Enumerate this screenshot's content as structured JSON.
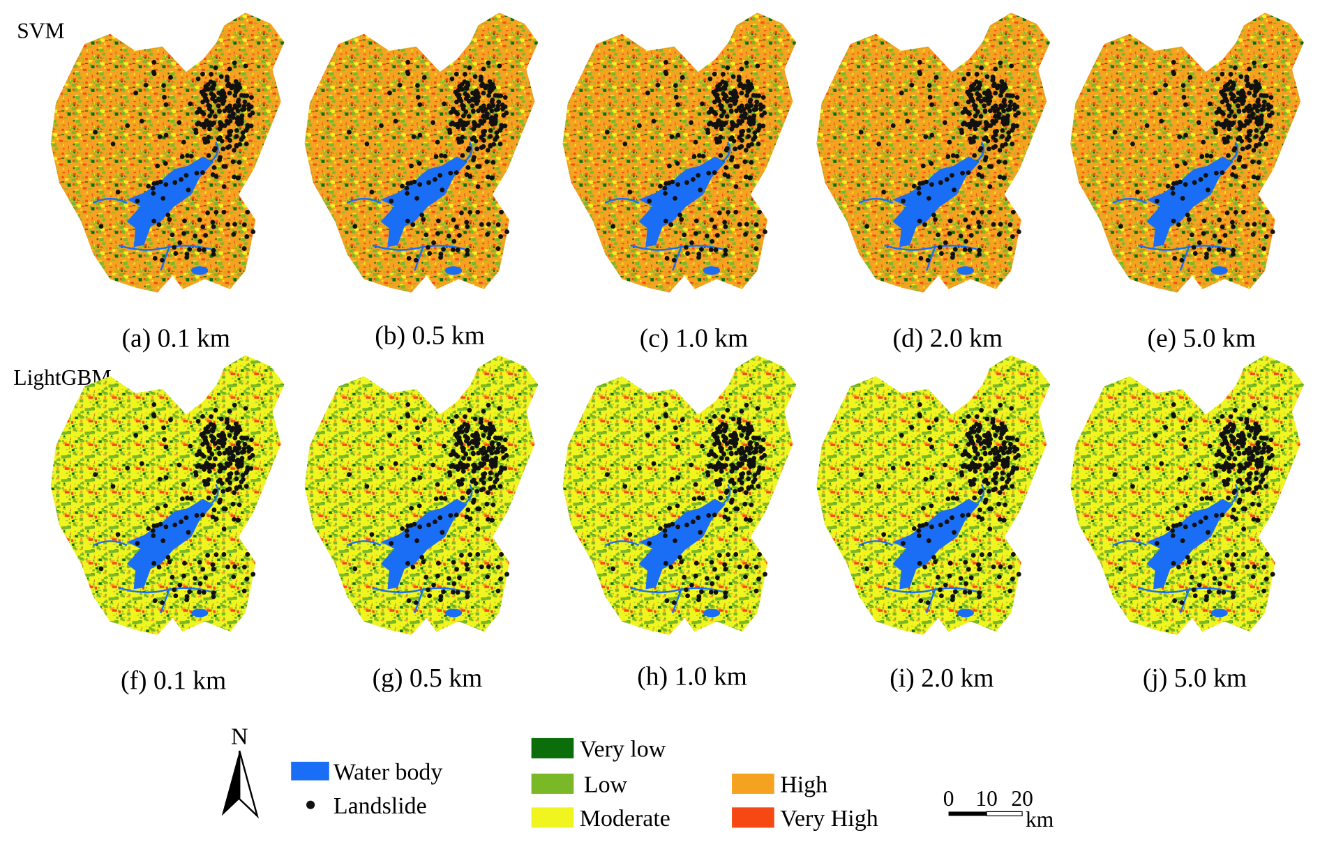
{
  "rows": [
    {
      "label": "SVM",
      "panels": [
        "(a) 0.1 km",
        "(b) 0.5 km",
        "(c) 1.0 km",
        "(d) 2.0 km",
        "(e) 5.0 km"
      ]
    },
    {
      "label": "LightGBM",
      "panels": [
        "(f) 0.1 km",
        "(g) 0.5 km",
        "(h) 1.0 km",
        "(i) 2.0 km",
        "(j) 5.0 km"
      ]
    }
  ],
  "legend": {
    "water": {
      "label": "Water body",
      "color": "#1a6ef5"
    },
    "landslide": {
      "label": "Landslide",
      "color": "#111111"
    },
    "classes": [
      {
        "label": "Very low",
        "color": "#0b6e0b"
      },
      {
        "label": "Low",
        "color": "#7ab828"
      },
      {
        "label": "Moderate",
        "color": "#f0f520"
      },
      {
        "label": "High",
        "color": "#f5a221"
      },
      {
        "label": "Very High",
        "color": "#f54812"
      }
    ]
  },
  "north": "N",
  "scale_bar": {
    "ticks": [
      "0",
      "10",
      "20"
    ],
    "unit": "km"
  }
}
